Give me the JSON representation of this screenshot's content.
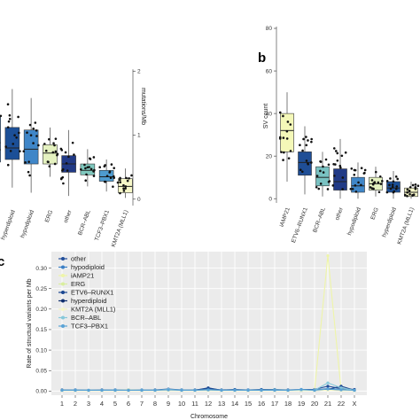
{
  "panel_labels": {
    "b": "b",
    "c": "c"
  },
  "chart_data": [
    {
      "panel": "a",
      "type": "box",
      "xlabel": "",
      "ylabel": "mutations/Mb",
      "ylim": [
        -0.1,
        3.0
      ],
      "yticks": [
        0,
        1,
        2
      ],
      "categories": [
        "",
        "hyperdiploid",
        "hypodiploid",
        "ERG",
        "other",
        "BCR–ABL",
        "TCF3–PBX1",
        "KMT2A (MLL1)"
      ],
      "boxes": [
        {
          "category": "",
          "q1": 0.58,
          "median": 0.88,
          "q3": 1.28,
          "whisker_low": 0.15,
          "whisker_high": 1.9,
          "color": "#2a6fb8"
        },
        {
          "category": "hyperdiploid",
          "q1": 0.62,
          "median": 0.8,
          "q3": 1.12,
          "whisker_low": 0.18,
          "whisker_high": 1.72,
          "color": "#1b4f97"
        },
        {
          "category": "hypodiploid",
          "q1": 0.55,
          "median": 0.78,
          "q3": 1.08,
          "whisker_low": 0.1,
          "whisker_high": 1.58,
          "color": "#3f86c8"
        },
        {
          "category": "ERG",
          "q1": 0.55,
          "median": 0.72,
          "q3": 0.85,
          "whisker_low": 0.35,
          "whisker_high": 1.12,
          "color": "#e5f2c0"
        },
        {
          "category": "other",
          "q1": 0.42,
          "median": 0.55,
          "q3": 0.68,
          "whisker_low": 0.05,
          "whisker_high": 1.08,
          "color": "#213a86"
        },
        {
          "category": "BCR–ABL",
          "q1": 0.38,
          "median": 0.45,
          "q3": 0.55,
          "whisker_low": 0.2,
          "whisker_high": 0.78,
          "color": "#7fc8be"
        },
        {
          "category": "TCF3–PBX1",
          "q1": 0.28,
          "median": 0.35,
          "q3": 0.45,
          "whisker_low": 0.12,
          "whisker_high": 0.62,
          "color": "#4e9bd0"
        },
        {
          "category": "KMT2A (MLL1)",
          "q1": 0.1,
          "median": 0.2,
          "q3": 0.32,
          "whisker_low": 0.02,
          "whisker_high": 0.48,
          "color": "#f6f7c8"
        }
      ]
    },
    {
      "panel": "b",
      "type": "box",
      "xlabel": "",
      "ylabel": "SV count",
      "ylim": [
        -2,
        90
      ],
      "yticks": [
        0,
        20,
        40,
        60,
        80
      ],
      "categories": [
        "iAMP21",
        "ETV6–RUNX1",
        "BCR–ABL",
        "other",
        "hypodiploid",
        "ERG",
        "hyperdiploid",
        "KMT2A (MLL1)"
      ],
      "boxes": [
        {
          "category": "iAMP21",
          "q1": 22,
          "median": 32,
          "q3": 40,
          "whisker_low": 8,
          "whisker_high": 50,
          "color": "#f4f8b8"
        },
        {
          "category": "ETV6–RUNX1",
          "q1": 11,
          "median": 17,
          "q3": 22,
          "whisker_low": 2,
          "whisker_high": 34,
          "color": "#1f4e96"
        },
        {
          "category": "BCR–ABL",
          "q1": 6,
          "median": 10,
          "q3": 15,
          "whisker_low": 1,
          "whisker_high": 22,
          "color": "#79c2c2"
        },
        {
          "category": "other",
          "q1": 4,
          "median": 8,
          "q3": 14,
          "whisker_low": 0,
          "whisker_high": 28,
          "color": "#213a86"
        },
        {
          "category": "hypodiploid",
          "q1": 3,
          "median": 6,
          "q3": 10,
          "whisker_low": 0,
          "whisker_high": 17,
          "color": "#3f86c8"
        },
        {
          "category": "ERG",
          "q1": 4,
          "median": 7,
          "q3": 10,
          "whisker_low": 1,
          "whisker_high": 15,
          "color": "#e5f2c0"
        },
        {
          "category": "hyperdiploid",
          "q1": 3,
          "median": 5,
          "q3": 8,
          "whisker_low": 0,
          "whisker_high": 13,
          "color": "#1b4f97"
        },
        {
          "category": "KMT2A (MLL1)",
          "q1": 1,
          "median": 3,
          "q3": 5,
          "whisker_low": 0,
          "whisker_high": 8,
          "color": "#f6f7c8"
        }
      ]
    },
    {
      "panel": "c",
      "type": "line",
      "xlabel": "Chromosome",
      "ylabel": "Rate of structual variants per Mb",
      "ylim": [
        -0.01,
        0.34
      ],
      "yticks": [
        0.0,
        0.05,
        0.1,
        0.15,
        0.2,
        0.25,
        0.3
      ],
      "ytick_labels": [
        "0.00",
        "0.05",
        "0.10",
        "0.15",
        "0.20",
        "0.25",
        "0.30"
      ],
      "categories": [
        "1",
        "2",
        "3",
        "4",
        "5",
        "6",
        "7",
        "8",
        "9",
        "10",
        "11",
        "12",
        "13",
        "14",
        "15",
        "16",
        "17",
        "18",
        "19",
        "20",
        "21",
        "22",
        "X"
      ],
      "grid": true,
      "legend_position": "top-left",
      "series": [
        {
          "name": "other",
          "color": "#214e9a",
          "values": [
            0.003,
            0.003,
            0.002,
            0.003,
            0.003,
            0.003,
            0.002,
            0.003,
            0.005,
            0.003,
            0.003,
            0.006,
            0.003,
            0.004,
            0.003,
            0.004,
            0.004,
            0.003,
            0.004,
            0.004,
            0.012,
            0.006,
            0.004
          ]
        },
        {
          "name": "hypodiploid",
          "color": "#3a7fc4",
          "values": [
            0.002,
            0.003,
            0.002,
            0.002,
            0.003,
            0.002,
            0.003,
            0.002,
            0.004,
            0.003,
            0.002,
            0.004,
            0.002,
            0.003,
            0.003,
            0.003,
            0.003,
            0.002,
            0.003,
            0.003,
            0.006,
            0.004,
            0.002
          ]
        },
        {
          "name": "iAMP21",
          "color": "#eef5a8",
          "values": [
            0.001,
            0.001,
            0.001,
            0.001,
            0.001,
            0.001,
            0.001,
            0.001,
            0.002,
            0.001,
            0.001,
            0.002,
            0.001,
            0.001,
            0.001,
            0.001,
            0.001,
            0.001,
            0.001,
            0.002,
            0.33,
            0.003,
            0.001
          ]
        },
        {
          "name": "ERG",
          "color": "#d9ee9e",
          "values": [
            0.002,
            0.002,
            0.002,
            0.002,
            0.002,
            0.003,
            0.002,
            0.002,
            0.003,
            0.002,
            0.002,
            0.003,
            0.002,
            0.002,
            0.002,
            0.002,
            0.003,
            0.002,
            0.002,
            0.002,
            0.004,
            0.003,
            0.002
          ]
        },
        {
          "name": "ETV6–RUNX1",
          "color": "#1a4791",
          "values": [
            0.002,
            0.002,
            0.002,
            0.002,
            0.002,
            0.002,
            0.002,
            0.002,
            0.003,
            0.002,
            0.002,
            0.008,
            0.002,
            0.002,
            0.002,
            0.002,
            0.002,
            0.002,
            0.002,
            0.002,
            0.004,
            0.012,
            0.002
          ]
        },
        {
          "name": "hyperdiploid",
          "color": "#0f2e6e",
          "values": [
            0.001,
            0.001,
            0.001,
            0.001,
            0.001,
            0.001,
            0.001,
            0.001,
            0.002,
            0.001,
            0.001,
            0.002,
            0.001,
            0.001,
            0.001,
            0.001,
            0.001,
            0.001,
            0.001,
            0.001,
            0.003,
            0.002,
            0.001
          ]
        },
        {
          "name": "KMT2A (MLL1)",
          "color": "#f6f7c8",
          "values": [
            0.001,
            0.001,
            0.001,
            0.001,
            0.001,
            0.001,
            0.001,
            0.001,
            0.001,
            0.001,
            0.001,
            0.001,
            0.001,
            0.001,
            0.001,
            0.001,
            0.001,
            0.001,
            0.001,
            0.001,
            0.002,
            0.001,
            0.001
          ]
        },
        {
          "name": "BCR–ABL",
          "color": "#86c8da",
          "values": [
            0.002,
            0.002,
            0.002,
            0.002,
            0.002,
            0.002,
            0.002,
            0.002,
            0.004,
            0.002,
            0.002,
            0.003,
            0.002,
            0.002,
            0.002,
            0.002,
            0.003,
            0.002,
            0.003,
            0.002,
            0.02,
            0.008,
            0.002
          ]
        },
        {
          "name": "TCF3–PBX1",
          "color": "#5aa3d6",
          "values": [
            0.002,
            0.002,
            0.002,
            0.002,
            0.002,
            0.002,
            0.002,
            0.002,
            0.003,
            0.002,
            0.002,
            0.003,
            0.002,
            0.002,
            0.002,
            0.002,
            0.002,
            0.002,
            0.004,
            0.002,
            0.005,
            0.003,
            0.002
          ]
        }
      ]
    }
  ]
}
